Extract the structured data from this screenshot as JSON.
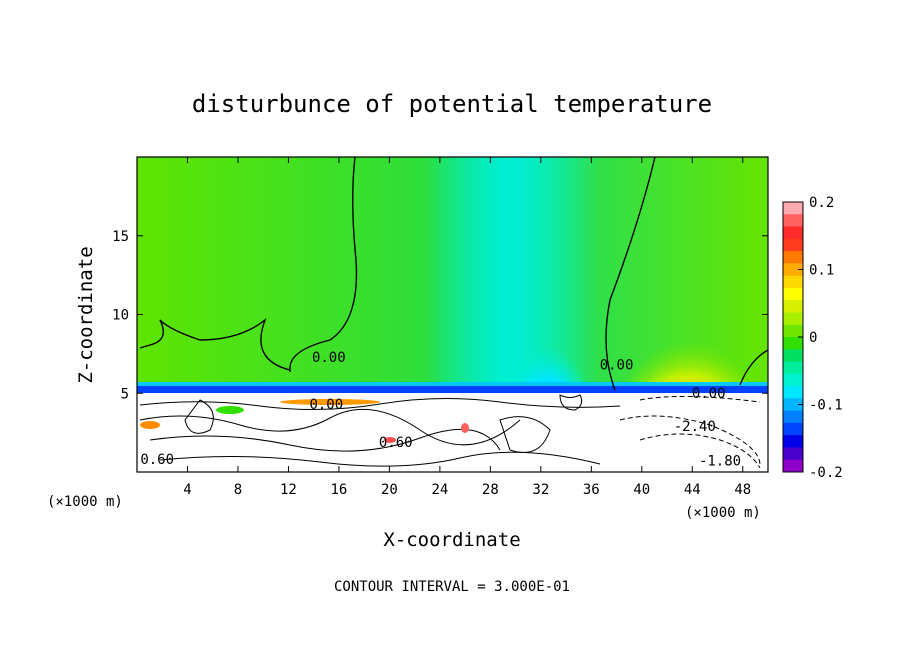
{
  "chart_data": {
    "type": "heatmap",
    "title": "disturbunce of potential temperature",
    "xlabel": "X-coordinate",
    "ylabel": "Z-coordinate",
    "x_unit": "(×1000 m)",
    "x_unit_right": "(×1000 m)",
    "footer": "CONTOUR INTERVAL = 3.000E-01",
    "xlim": [
      0,
      50
    ],
    "ylim": [
      0,
      20
    ],
    "x_ticks": [
      4,
      8,
      12,
      16,
      20,
      24,
      28,
      32,
      36,
      40,
      44,
      48
    ],
    "y_ticks": [
      5,
      10,
      15
    ],
    "colorbar": {
      "range": [
        -0.2,
        0.2
      ],
      "tick_labels": [
        "0.2",
        "0.1",
        "0",
        "-0.1",
        "-0.2"
      ],
      "tick_values": [
        0.2,
        0.1,
        0,
        -0.1,
        -0.2
      ],
      "colors": [
        "#ffa8b0",
        "#ff6060",
        "#ff2a2a",
        "#ff3c1e",
        "#ff7a00",
        "#ffaa00",
        "#ffd700",
        "#ffff00",
        "#d8f000",
        "#a8ef00",
        "#70e600",
        "#30e000",
        "#00e060",
        "#00ee9e",
        "#00f0d0",
        "#00e6ff",
        "#00b4ff",
        "#0080ff",
        "#0044ff",
        "#0000e6",
        "#4a00cc",
        "#8f00c8"
      ]
    },
    "contour_labels": [
      {
        "text": "0.00",
        "x": 15.2,
        "z": 7.0
      },
      {
        "text": "0.00",
        "x": 15.0,
        "z": 4.0
      },
      {
        "text": "0.00",
        "x": 38.0,
        "z": 6.5
      },
      {
        "text": "0.60",
        "x": 20.5,
        "z": 1.6
      },
      {
        "text": "0.60",
        "x": 1.6,
        "z": 0.5
      },
      {
        "text": "-2.40",
        "x": 44.2,
        "z": 2.6
      },
      {
        "text": "-1.80",
        "x": 46.2,
        "z": 0.4
      },
      {
        "text": "0.00",
        "x": 45.3,
        "z": 4.7
      }
    ]
  }
}
